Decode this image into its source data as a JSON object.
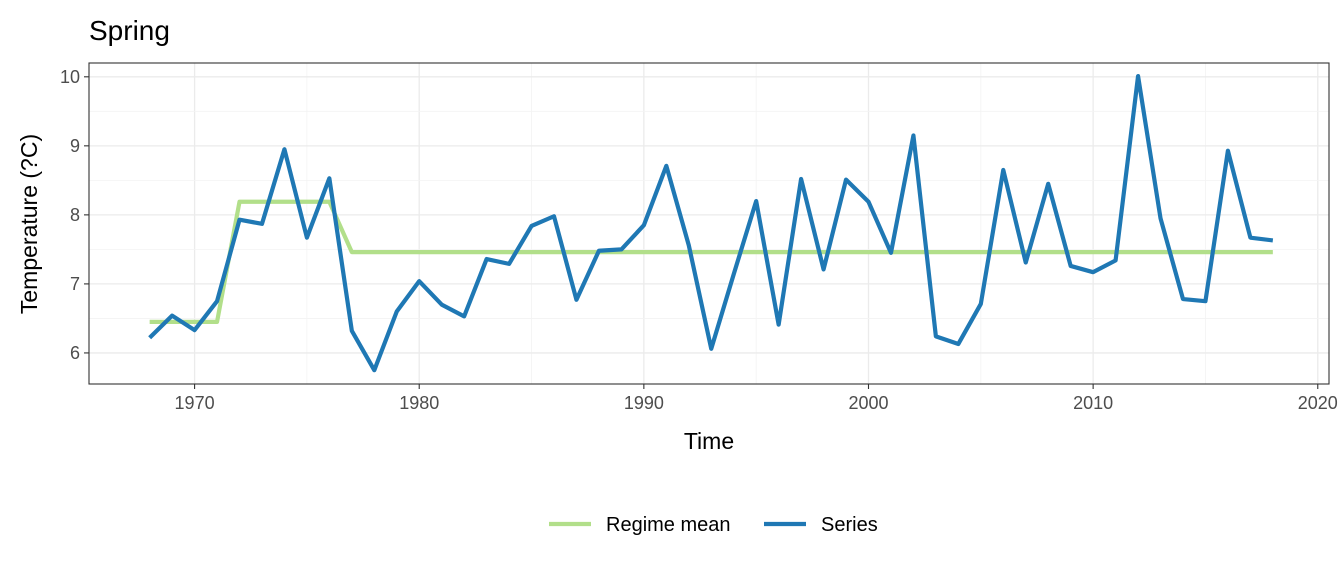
{
  "chart_data": {
    "type": "line",
    "title": "Spring",
    "xlabel": "Time",
    "ylabel": "Temperature (?C)",
    "xlim": [
      1965.3,
      2020.5
    ],
    "ylim": [
      5.55,
      10.2
    ],
    "x_ticks": [
      "1970",
      "1980",
      "1990",
      "2000",
      "2010",
      "2020"
    ],
    "y_ticks": [
      "6",
      "7",
      "8",
      "9",
      "10"
    ],
    "grid": true,
    "legend_position": "bottom",
    "series": [
      {
        "name": "Regime mean",
        "color": "#b2df8a",
        "points": [
          [
            1968,
            6.45
          ],
          [
            1971,
            6.45
          ],
          [
            1972,
            8.19
          ],
          [
            1976,
            8.19
          ],
          [
            1977,
            7.46
          ],
          [
            2018,
            7.46
          ]
        ]
      },
      {
        "name": "Series",
        "color": "#1f78b4",
        "points": [
          [
            1968,
            6.22
          ],
          [
            1969,
            6.54
          ],
          [
            1970,
            6.33
          ],
          [
            1971,
            6.75
          ],
          [
            1972,
            7.93
          ],
          [
            1973,
            7.87
          ],
          [
            1974,
            8.95
          ],
          [
            1975,
            7.67
          ],
          [
            1976,
            8.53
          ],
          [
            1977,
            6.32
          ],
          [
            1978,
            5.75
          ],
          [
            1979,
            6.6
          ],
          [
            1980,
            7.04
          ],
          [
            1981,
            6.7
          ],
          [
            1982,
            6.53
          ],
          [
            1983,
            7.36
          ],
          [
            1984,
            7.29
          ],
          [
            1985,
            7.84
          ],
          [
            1986,
            7.98
          ],
          [
            1987,
            6.77
          ],
          [
            1988,
            7.48
          ],
          [
            1989,
            7.5
          ],
          [
            1990,
            7.85
          ],
          [
            1991,
            8.71
          ],
          [
            1992,
            7.56
          ],
          [
            1993,
            6.06
          ],
          [
            1994,
            7.14
          ],
          [
            1995,
            8.2
          ],
          [
            1996,
            6.41
          ],
          [
            1997,
            8.52
          ],
          [
            1998,
            7.21
          ],
          [
            1999,
            8.51
          ],
          [
            2000,
            8.19
          ],
          [
            2001,
            7.45
          ],
          [
            2002,
            9.15
          ],
          [
            2003,
            6.24
          ],
          [
            2004,
            6.13
          ],
          [
            2005,
            6.71
          ],
          [
            2006,
            8.65
          ],
          [
            2007,
            7.31
          ],
          [
            2008,
            8.45
          ],
          [
            2009,
            7.26
          ],
          [
            2010,
            7.17
          ],
          [
            2011,
            7.34
          ],
          [
            2012,
            10.01
          ],
          [
            2013,
            7.95
          ],
          [
            2014,
            6.78
          ],
          [
            2015,
            6.75
          ],
          [
            2016,
            8.93
          ],
          [
            2017,
            7.67
          ],
          [
            2018,
            7.63
          ]
        ]
      }
    ]
  }
}
